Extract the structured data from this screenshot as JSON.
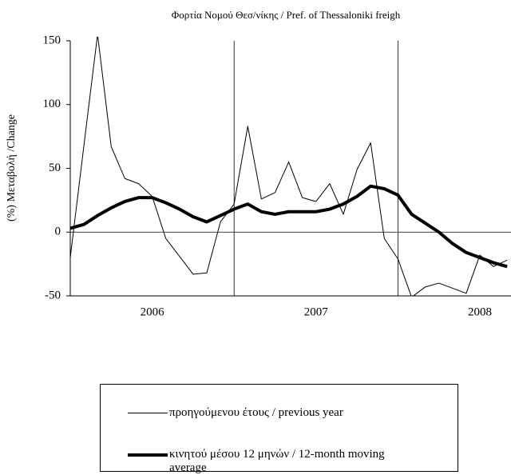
{
  "chart_data": {
    "type": "line",
    "title": "Φορτία Νομού Θεσ/νίκης  / Pref. of  Thessaloniki  freigh",
    "y_label": "(%) Μεταβολή /Change",
    "categories": [
      null,
      null,
      null,
      null,
      null,
      null,
      "2006",
      null,
      null,
      null,
      null,
      null,
      null,
      null,
      null,
      null,
      null,
      null,
      "2007",
      null,
      null,
      null,
      null,
      null,
      null,
      null,
      null,
      null,
      null,
      null,
      "2008",
      null,
      null
    ],
    "series": [
      {
        "name": "προηγούμενου έτους / previous year",
        "color": "#000000",
        "width": 1,
        "values": [
          -20,
          68,
          155,
          67,
          42,
          38,
          28,
          -5,
          -19,
          -33,
          -32,
          8,
          22,
          83,
          26,
          31,
          55,
          27,
          24,
          38,
          14,
          49,
          70,
          -5,
          -21,
          -51,
          -43,
          -40,
          -44,
          -48,
          -18,
          -27,
          -22
        ]
      },
      {
        "name": "κινητού μέσου 12 μηνών / 12-month moving average",
        "color": "#000000",
        "width": 4,
        "values": [
          3,
          6,
          13,
          19,
          24,
          27,
          27,
          23,
          18,
          12,
          8,
          13,
          18,
          22,
          16,
          14,
          16,
          16,
          16,
          18,
          22,
          28,
          36,
          34,
          29,
          14,
          7,
          0,
          -9,
          -16,
          -20,
          -24,
          -27
        ]
      }
    ],
    "ylim": [
      -50,
      150
    ],
    "yticks": [
      -50,
      0,
      50,
      100,
      150
    ]
  }
}
